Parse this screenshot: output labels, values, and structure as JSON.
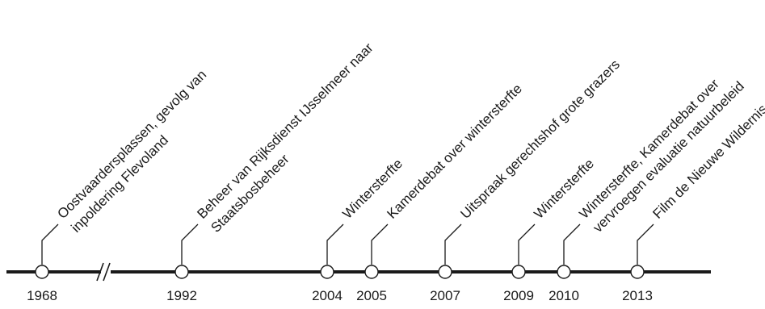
{
  "timeline": {
    "events": [
      {
        "year": "1968",
        "lines": [
          "Oostvaardersplassen, gevolg van",
          "inpoldering Flevoland"
        ]
      },
      {
        "year": "1992",
        "lines": [
          "Beheer van Rijksdienst IJsselmeer naar",
          "Staatsbosbeheer"
        ]
      },
      {
        "year": "2004",
        "lines": [
          "Wintersterfte"
        ]
      },
      {
        "year": "2005",
        "lines": [
          "Kamerdebat over wintersterfte"
        ]
      },
      {
        "year": "2007",
        "lines": [
          "Uitspraak gerechtshof grote grazers"
        ]
      },
      {
        "year": "2009",
        "lines": [
          "Wintersterfte"
        ]
      },
      {
        "year": "2010",
        "lines": [
          "Wintersterfte, Kamerdebat over",
          "vervroegen evaluatie natuurbeleid"
        ]
      },
      {
        "year": "2013",
        "lines": [
          "Film de Nieuwe Wildernis"
        ]
      }
    ],
    "colors": {
      "line": "#1a1a1a",
      "marker_fill": "#ffffff",
      "text": "#1a1a1a"
    }
  }
}
